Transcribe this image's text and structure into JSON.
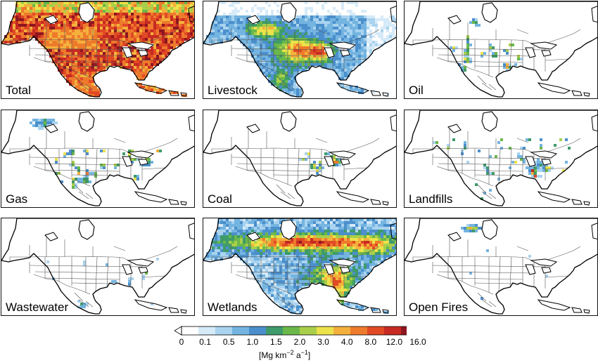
{
  "panels": [
    {
      "label": "Total",
      "source": "total"
    },
    {
      "label": "Livestock",
      "source": "livestock"
    },
    {
      "label": "Oil",
      "source": "oil"
    },
    {
      "label": "Gas",
      "source": "gas"
    },
    {
      "label": "Coal",
      "source": "coal"
    },
    {
      "label": "Landfills",
      "source": "landfills"
    },
    {
      "label": "Wastewater",
      "source": "wastewater"
    },
    {
      "label": "Wetlands",
      "source": "wetlands"
    },
    {
      "label": "Open Fires",
      "source": "fires"
    }
  ],
  "colorbar": {
    "ticks": [
      "0",
      "0.1",
      "0.5",
      "1.0",
      "1.5",
      "2.0",
      "3.0",
      "4.0",
      "8.0",
      "12.0",
      "16.0"
    ],
    "colors": [
      "#ffffff",
      "#d6eaf8",
      "#a9d3ef",
      "#74b4e0",
      "#4b8fcc",
      "#3f9b6a",
      "#6ab84a",
      "#a9cf4a",
      "#ece24a",
      "#f4b03c",
      "#ee7a2c",
      "#e14a24",
      "#c62a22",
      "#8e1620"
    ],
    "units_prefix": "[Mg km",
    "units_exp1": "−2",
    "units_mid": " a",
    "units_exp2": "−1",
    "units_suffix": "]"
  }
}
